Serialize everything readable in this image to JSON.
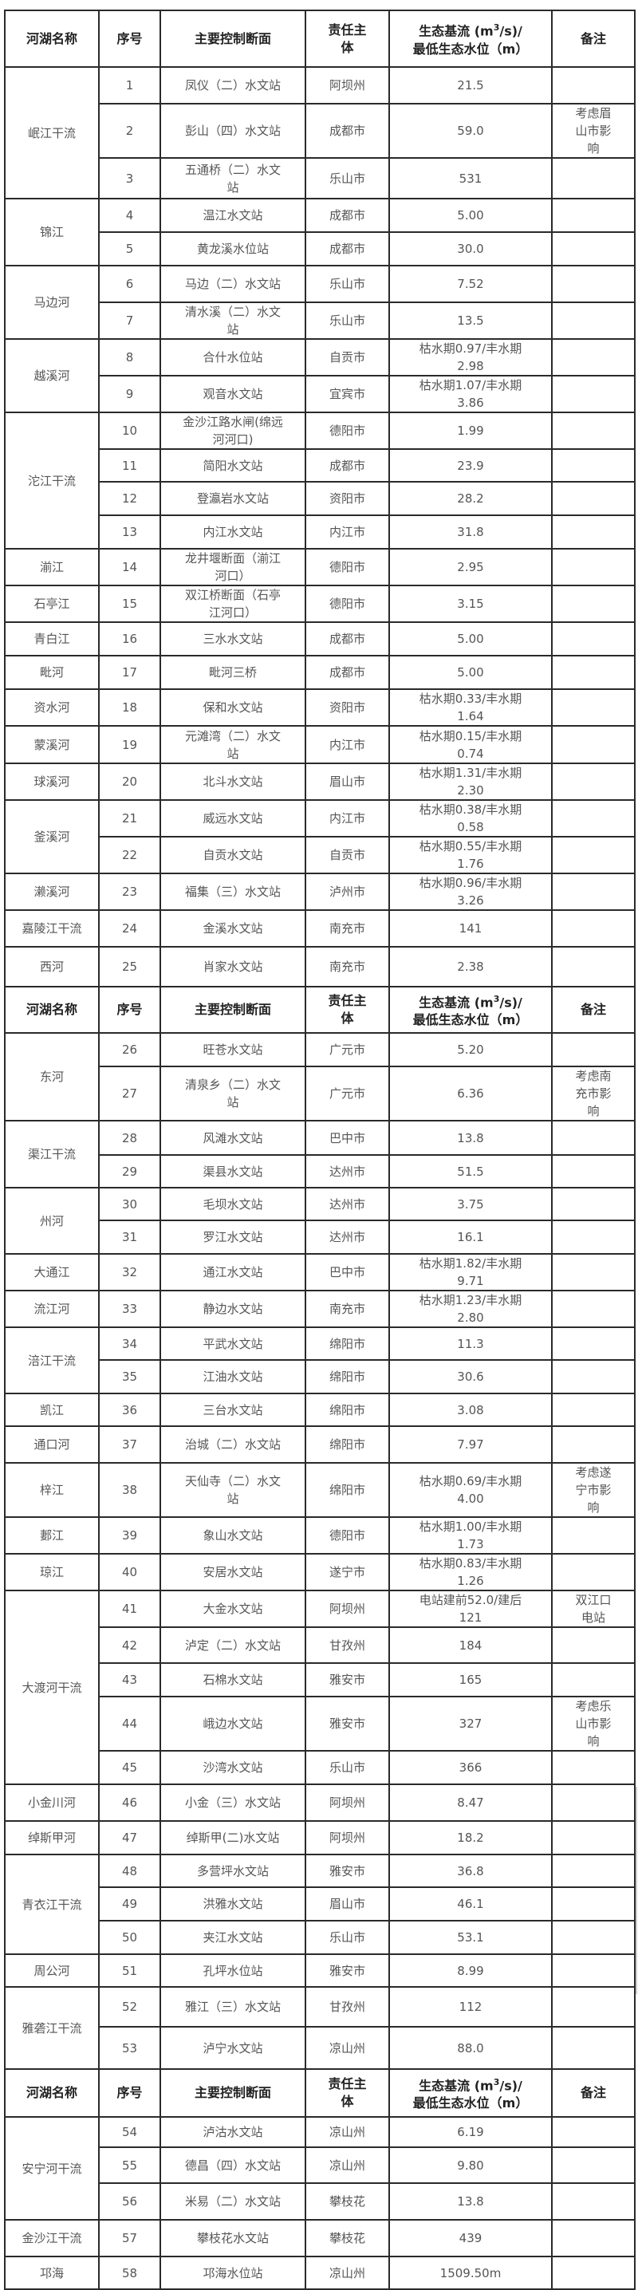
{
  "header": {
    "river": "河湖名称",
    "no": "序号",
    "section": "主要控制断面",
    "authority": "责任主体",
    "flow_pre": "生态基流 (m",
    "flow_sup": "3",
    "flow_post": "/s)/",
    "flow_line2": "最低生态水位（m）",
    "note": "备注"
  },
  "sections": [
    {
      "groups": [
        {
          "river": "岷江干流",
          "rows": [
            {
              "no": "1",
              "section": "凤仪（二）水文站",
              "authority": "阿坝州",
              "value": "21.5",
              "note": ""
            },
            {
              "no": "2",
              "section": "彭山（四）水文站",
              "authority": "成都市",
              "value": "59.0",
              "note": "考虑眉山市影响"
            },
            {
              "no": "3",
              "section": "五通桥（二）水文站",
              "authority": "乐山市",
              "value": "531",
              "note": ""
            }
          ]
        },
        {
          "river": "锦江",
          "rows": [
            {
              "no": "4",
              "section": "温江水文站",
              "authority": "成都市",
              "value": "5.00",
              "note": ""
            },
            {
              "no": "5",
              "section": "黄龙溪水位站",
              "authority": "成都市",
              "value": "30.0",
              "note": ""
            }
          ]
        },
        {
          "river": "马边河",
          "rows": [
            {
              "no": "6",
              "section": "马边（二）水文站",
              "authority": "乐山市",
              "value": "7.52",
              "note": ""
            },
            {
              "no": "7",
              "section": "清水溪（二）水文站",
              "authority": "乐山市",
              "value": "13.5",
              "note": ""
            }
          ]
        },
        {
          "river": "越溪河",
          "rows": [
            {
              "no": "8",
              "section": "合什水位站",
              "authority": "自贡市",
              "value": "枯水期0.97/丰水期2.98",
              "note": ""
            },
            {
              "no": "9",
              "section": "观音水文站",
              "authority": "宜宾市",
              "value": "枯水期1.07/丰水期3.86",
              "note": ""
            }
          ]
        },
        {
          "river": "沱江干流",
          "rows": [
            {
              "no": "10",
              "section": "金沙江路水闸(绵远河河口)",
              "authority": "德阳市",
              "value": "1.99",
              "note": ""
            },
            {
              "no": "11",
              "section": "简阳水文站",
              "authority": "成都市",
              "value": "23.9",
              "note": ""
            },
            {
              "no": "12",
              "section": "登瀛岩水文站",
              "authority": "资阳市",
              "value": "28.2",
              "note": ""
            },
            {
              "no": "13",
              "section": "内江水文站",
              "authority": "内江市",
              "value": "31.8",
              "note": ""
            }
          ]
        },
        {
          "river": "湔江",
          "rows": [
            {
              "no": "14",
              "section": "龙井堰断面（湔江河口）",
              "authority": "德阳市",
              "value": "2.95",
              "note": ""
            }
          ]
        },
        {
          "river": "石亭江",
          "rows": [
            {
              "no": "15",
              "section": "双江桥断面（石亭江河口）",
              "authority": "德阳市",
              "value": "3.15",
              "note": ""
            }
          ]
        },
        {
          "river": "青白江",
          "rows": [
            {
              "no": "16",
              "section": "三水水文站",
              "authority": "成都市",
              "value": "5.00",
              "note": ""
            }
          ]
        },
        {
          "river": "毗河",
          "rows": [
            {
              "no": "17",
              "section": "毗河三桥",
              "authority": "成都市",
              "value": "5.00",
              "note": ""
            }
          ]
        },
        {
          "river": "资水河",
          "rows": [
            {
              "no": "18",
              "section": "保和水文站",
              "authority": "资阳市",
              "value": "枯水期0.33/丰水期1.64",
              "note": ""
            }
          ]
        },
        {
          "river": "蒙溪河",
          "rows": [
            {
              "no": "19",
              "section": "元滩湾（二）水文站",
              "authority": "内江市",
              "value": "枯水期0.15/丰水期0.74",
              "note": ""
            }
          ]
        },
        {
          "river": "球溪河",
          "rows": [
            {
              "no": "20",
              "section": "北斗水文站",
              "authority": "眉山市",
              "value": "枯水期1.31/丰水期2.30",
              "note": ""
            }
          ]
        },
        {
          "river": "釜溪河",
          "rows": [
            {
              "no": "21",
              "section": "威远水文站",
              "authority": "内江市",
              "value": "枯水期0.38/丰水期0.58",
              "note": ""
            },
            {
              "no": "22",
              "section": "自贡水文站",
              "authority": "自贡市",
              "value": "枯水期0.55/丰水期1.76",
              "note": ""
            }
          ]
        },
        {
          "river": "濑溪河",
          "rows": [
            {
              "no": "23",
              "section": "福集（三）水文站",
              "authority": "泸州市",
              "value": "枯水期0.96/丰水期3.26",
              "note": ""
            }
          ]
        },
        {
          "river": "嘉陵江干流",
          "rows": [
            {
              "no": "24",
              "section": "金溪水文站",
              "authority": "南充市",
              "value": "141",
              "note": ""
            }
          ]
        },
        {
          "river": "西河",
          "rows": [
            {
              "no": "25",
              "section": "肖家水文站",
              "authority": "南充市",
              "value": "2.38",
              "note": ""
            }
          ]
        }
      ]
    },
    {
      "groups": [
        {
          "river": "东河",
          "rows": [
            {
              "no": "26",
              "section": "旺苍水文站",
              "authority": "广元市",
              "value": "5.20",
              "note": ""
            },
            {
              "no": "27",
              "section": "清泉乡（二）水文站",
              "authority": "广元市",
              "value": "6.36",
              "note": "考虑南充市影响"
            }
          ]
        },
        {
          "river": "渠江干流",
          "rows": [
            {
              "no": "28",
              "section": "风滩水文站",
              "authority": "巴中市",
              "value": "13.8",
              "note": ""
            },
            {
              "no": "29",
              "section": "渠县水文站",
              "authority": "达州市",
              "value": "51.5",
              "note": ""
            }
          ]
        },
        {
          "river": "州河",
          "rows": [
            {
              "no": "30",
              "section": "毛坝水文站",
              "authority": "达州市",
              "value": "3.75",
              "note": ""
            },
            {
              "no": "31",
              "section": "罗江水文站",
              "authority": "达州市",
              "value": "16.1",
              "note": ""
            }
          ]
        },
        {
          "river": "大通江",
          "rows": [
            {
              "no": "32",
              "section": "通江水文站",
              "authority": "巴中市",
              "value": "枯水期1.82/丰水期9.71",
              "note": ""
            }
          ]
        },
        {
          "river": "流江河",
          "rows": [
            {
              "no": "33",
              "section": "静边水文站",
              "authority": "南充市",
              "value": "枯水期1.23/丰水期2.80",
              "note": ""
            }
          ]
        },
        {
          "river": "涪江干流",
          "rows": [
            {
              "no": "34",
              "section": "平武水文站",
              "authority": "绵阳市",
              "value": "11.3",
              "note": ""
            },
            {
              "no": "35",
              "section": "江油水文站",
              "authority": "绵阳市",
              "value": "30.6",
              "note": ""
            }
          ]
        },
        {
          "river": "凯江",
          "rows": [
            {
              "no": "36",
              "section": "三台水文站",
              "authority": "绵阳市",
              "value": "3.08",
              "note": ""
            }
          ]
        },
        {
          "river": "通口河",
          "rows": [
            {
              "no": "37",
              "section": "治城（二）水文站",
              "authority": "绵阳市",
              "value": "7.97",
              "note": ""
            }
          ]
        },
        {
          "river": "梓江",
          "rows": [
            {
              "no": "38",
              "section": "天仙寺（二）水文站",
              "authority": "绵阳市",
              "value": "枯水期0.69/丰水期4.00",
              "note": "考虑遂宁市影响"
            }
          ]
        },
        {
          "river": "郪江",
          "rows": [
            {
              "no": "39",
              "section": "象山水文站",
              "authority": "德阳市",
              "value": "枯水期1.00/丰水期1.73",
              "note": ""
            }
          ]
        },
        {
          "river": "琼江",
          "rows": [
            {
              "no": "40",
              "section": "安居水文站",
              "authority": "遂宁市",
              "value": "枯水期0.83/丰水期1.26",
              "note": ""
            }
          ]
        },
        {
          "river": "大渡河干流",
          "rows": [
            {
              "no": "41",
              "section": "大金水文站",
              "authority": "阿坝州",
              "value": "电站建前52.0/建后121",
              "note": "双江口电站"
            },
            {
              "no": "42",
              "section": "泸定（二）水文站",
              "authority": "甘孜州",
              "value": "184",
              "note": ""
            },
            {
              "no": "43",
              "section": "石棉水文站",
              "authority": "雅安市",
              "value": "165",
              "note": ""
            },
            {
              "no": "44",
              "section": "峨边水文站",
              "authority": "雅安市",
              "value": "327",
              "note": "考虑乐山市影响"
            },
            {
              "no": "45",
              "section": "沙湾水文站",
              "authority": "乐山市",
              "value": "366",
              "note": ""
            }
          ]
        },
        {
          "river": "小金川河",
          "rows": [
            {
              "no": "46",
              "section": "小金（三）水文站",
              "authority": "阿坝州",
              "value": "8.47",
              "note": ""
            }
          ]
        },
        {
          "river": "绰斯甲河",
          "rows": [
            {
              "no": "47",
              "section": "绰斯甲(二)水文站",
              "authority": "阿坝州",
              "value": "18.2",
              "note": ""
            }
          ]
        },
        {
          "river": "青衣江干流",
          "rows": [
            {
              "no": "48",
              "section": "多营坪水文站",
              "authority": "雅安市",
              "value": "36.8",
              "note": ""
            },
            {
              "no": "49",
              "section": "洪雅水文站",
              "authority": "眉山市",
              "value": "46.1",
              "note": ""
            },
            {
              "no": "50",
              "section": "夹江水文站",
              "authority": "乐山市",
              "value": "53.1",
              "note": ""
            }
          ]
        },
        {
          "river": "周公河",
          "rows": [
            {
              "no": "51",
              "section": "孔坪水位站",
              "authority": "雅安市",
              "value": "8.99",
              "note": ""
            }
          ]
        },
        {
          "river": "雅砻江干流",
          "rows": [
            {
              "no": "52",
              "section": "雅江（三）水文站",
              "authority": "甘孜州",
              "value": "112",
              "note": ""
            },
            {
              "no": "53",
              "section": "泸宁水文站",
              "authority": "凉山州",
              "value": "88.0",
              "note": ""
            }
          ]
        }
      ]
    },
    {
      "groups": [
        {
          "river": "安宁河干流",
          "rows": [
            {
              "no": "54",
              "section": "泸沽水文站",
              "authority": "凉山州",
              "value": "6.19",
              "note": ""
            },
            {
              "no": "55",
              "section": "德昌（四）水文站",
              "authority": "凉山州",
              "value": "9.80",
              "note": ""
            },
            {
              "no": "56",
              "section": "米易（二）水文站",
              "authority": "攀枝花",
              "value": "13.8",
              "note": ""
            }
          ]
        },
        {
          "river": "金沙江干流",
          "rows": [
            {
              "no": "57",
              "section": "攀枝花水文站",
              "authority": "攀枝花",
              "value": "439",
              "note": ""
            }
          ]
        },
        {
          "river": "邛海",
          "rows": [
            {
              "no": "58",
              "section": "邛海水位站",
              "authority": "凉山州",
              "value": "1509.50m",
              "note": ""
            }
          ]
        }
      ]
    }
  ]
}
